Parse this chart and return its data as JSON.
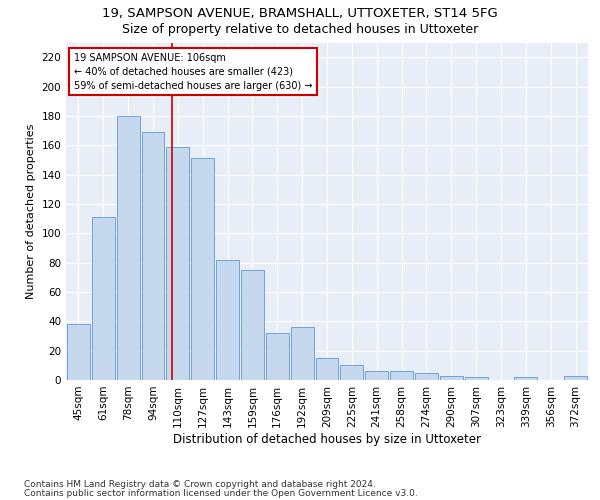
{
  "title1": "19, SAMPSON AVENUE, BRAMSHALL, UTTOXETER, ST14 5FG",
  "title2": "Size of property relative to detached houses in Uttoxeter",
  "xlabel": "Distribution of detached houses by size in Uttoxeter",
  "ylabel": "Number of detached properties",
  "categories": [
    "45sqm",
    "61sqm",
    "78sqm",
    "94sqm",
    "110sqm",
    "127sqm",
    "143sqm",
    "159sqm",
    "176sqm",
    "192sqm",
    "209sqm",
    "225sqm",
    "241sqm",
    "258sqm",
    "274sqm",
    "290sqm",
    "307sqm",
    "323sqm",
    "339sqm",
    "356sqm",
    "372sqm"
  ],
  "values": [
    38,
    111,
    180,
    169,
    159,
    151,
    82,
    75,
    32,
    36,
    15,
    10,
    6,
    6,
    5,
    3,
    2,
    0,
    2,
    0,
    3
  ],
  "bar_color": "#c5d8ed",
  "bar_edge_color": "#5b9bd5",
  "vline_color": "#cc0000",
  "annotation_text": "19 SAMPSON AVENUE: 106sqm\n← 40% of detached houses are smaller (423)\n59% of semi-detached houses are larger (630) →",
  "annotation_box_color": "#ffffff",
  "annotation_box_edge": "#cc0000",
  "footer1": "Contains HM Land Registry data © Crown copyright and database right 2024.",
  "footer2": "Contains public sector information licensed under the Open Government Licence v3.0.",
  "ylim": [
    0,
    230
  ],
  "yticks": [
    0,
    20,
    40,
    60,
    80,
    100,
    120,
    140,
    160,
    180,
    200,
    220
  ],
  "bg_color": "#e8eef7",
  "grid_color": "#ffffff",
  "title1_fontsize": 9.5,
  "title2_fontsize": 9,
  "xlabel_fontsize": 8.5,
  "ylabel_fontsize": 8,
  "tick_fontsize": 7.5,
  "footer_fontsize": 6.5
}
